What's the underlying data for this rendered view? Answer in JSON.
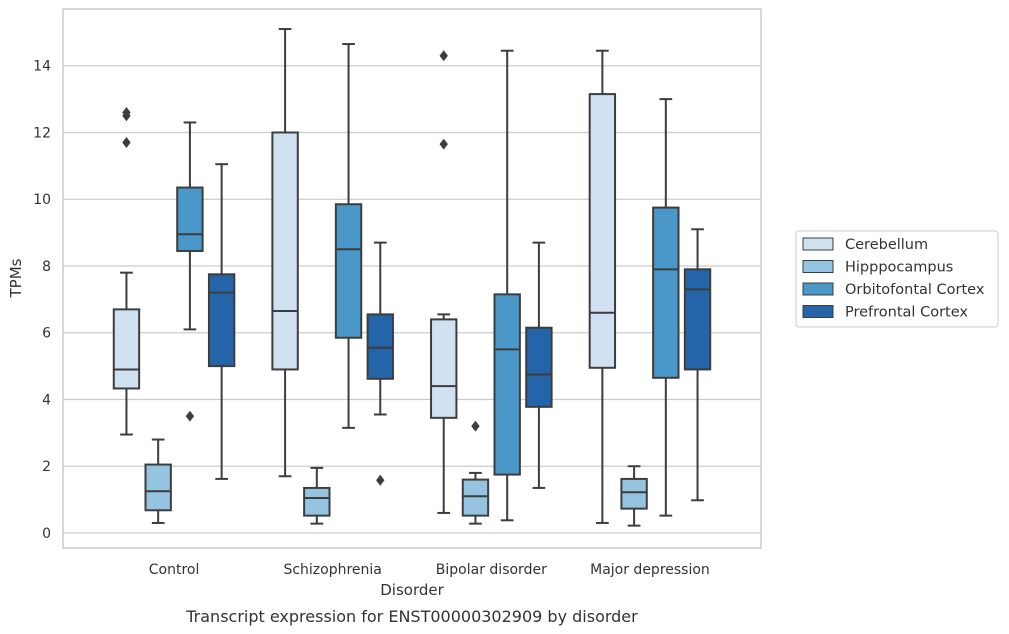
{
  "chart_data": {
    "type": "box",
    "caption": "Transcript expression for ENST00000302909 by disorder",
    "xlabel": "Disorder",
    "ylabel": "TPMs",
    "ylim": [
      -0.45,
      15.7
    ],
    "yticks": [
      0,
      2,
      4,
      6,
      8,
      10,
      12,
      14
    ],
    "grid": true,
    "legend_position": "right",
    "categories": [
      "Control",
      "Schizophrenia",
      "Bipolar disorder",
      "Major depression"
    ],
    "series": [
      {
        "name": "Cerebellum",
        "color": "#d0e1f2",
        "boxes": [
          {
            "whislo": 2.95,
            "q1": 4.33,
            "med": 4.9,
            "q3": 6.7,
            "whishi": 7.8,
            "fliers": [
              11.7,
              12.5,
              12.6
            ]
          },
          {
            "whislo": 1.7,
            "q1": 4.9,
            "med": 6.65,
            "q3": 12.0,
            "whishi": 15.1,
            "fliers": []
          },
          {
            "whislo": 0.6,
            "q1": 3.45,
            "med": 4.4,
            "q3": 6.4,
            "whishi": 6.55,
            "fliers": [
              11.65,
              14.3
            ]
          },
          {
            "whislo": 0.3,
            "q1": 4.95,
            "med": 6.6,
            "q3": 13.15,
            "whishi": 14.45,
            "fliers": []
          }
        ]
      },
      {
        "name": "Hipppocampus",
        "color": "#94c4df",
        "boxes": [
          {
            "whislo": 0.3,
            "q1": 0.68,
            "med": 1.25,
            "q3": 2.05,
            "whishi": 2.8,
            "fliers": []
          },
          {
            "whislo": 0.28,
            "q1": 0.52,
            "med": 1.05,
            "q3": 1.35,
            "whishi": 1.95,
            "fliers": []
          },
          {
            "whislo": 0.28,
            "q1": 0.52,
            "med": 1.1,
            "q3": 1.6,
            "whishi": 1.8,
            "fliers": [
              3.2
            ]
          },
          {
            "whislo": 0.22,
            "q1": 0.73,
            "med": 1.22,
            "q3": 1.62,
            "whishi": 2.0,
            "fliers": []
          }
        ]
      },
      {
        "name": "Orbitofontal Cortex",
        "color": "#4a98c9",
        "boxes": [
          {
            "whislo": 6.1,
            "q1": 8.45,
            "med": 8.95,
            "q3": 10.35,
            "whishi": 12.3,
            "fliers": [
              3.5
            ]
          },
          {
            "whislo": 3.15,
            "q1": 5.85,
            "med": 8.5,
            "q3": 9.85,
            "whishi": 14.65,
            "fliers": []
          },
          {
            "whislo": 0.38,
            "q1": 1.75,
            "med": 5.5,
            "q3": 7.15,
            "whishi": 14.45,
            "fliers": []
          },
          {
            "whislo": 0.52,
            "q1": 4.65,
            "med": 7.9,
            "q3": 9.75,
            "whishi": 13.0,
            "fliers": []
          }
        ]
      },
      {
        "name": "Prefrontal Cortex",
        "color": "#2464a8",
        "boxes": [
          {
            "whislo": 1.62,
            "q1": 5.0,
            "med": 7.2,
            "q3": 7.75,
            "whishi": 11.05,
            "fliers": []
          },
          {
            "whislo": 3.55,
            "q1": 4.62,
            "med": 5.55,
            "q3": 6.55,
            "whishi": 8.7,
            "fliers": [
              1.58
            ]
          },
          {
            "whislo": 1.35,
            "q1": 3.78,
            "med": 4.75,
            "q3": 6.15,
            "whishi": 8.7,
            "fliers": []
          },
          {
            "whislo": 0.98,
            "q1": 4.9,
            "med": 7.3,
            "q3": 7.9,
            "whishi": 9.1,
            "fliers": []
          }
        ]
      }
    ]
  }
}
